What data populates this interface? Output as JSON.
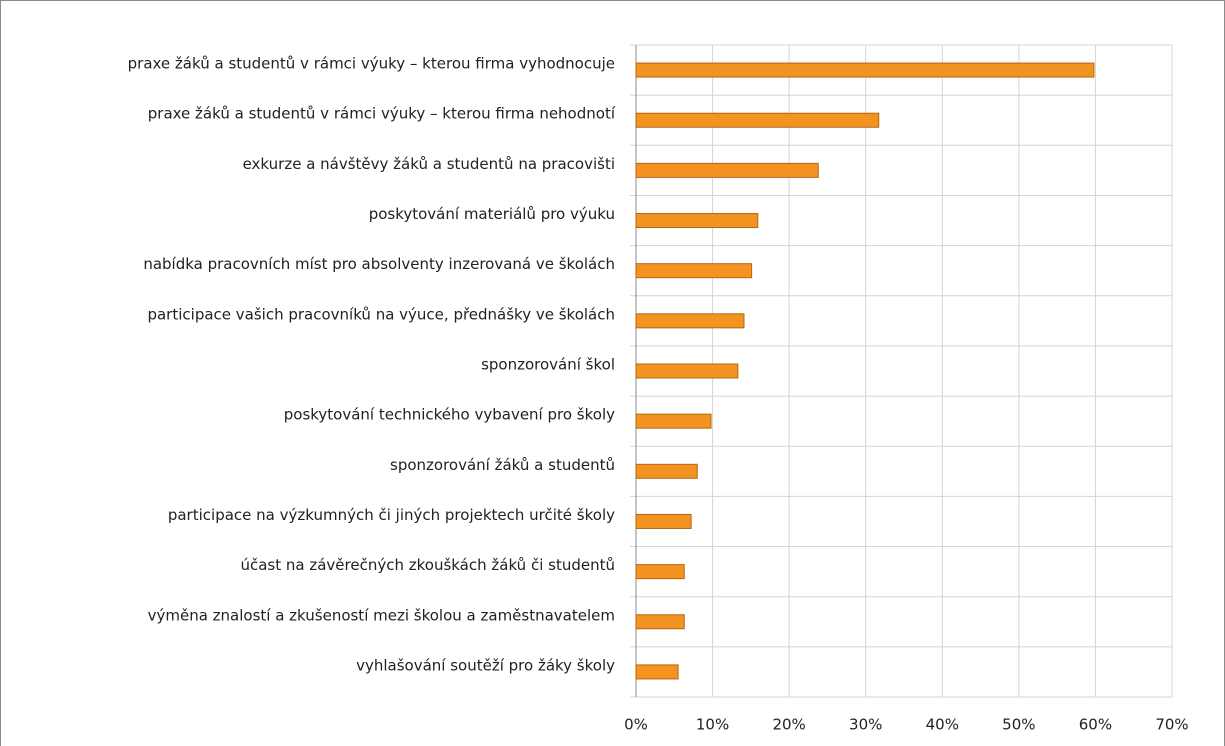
{
  "chart_data": {
    "type": "bar",
    "orientation": "horizontal",
    "categories": [
      "praxe žáků a studentů v rámci výuky – kterou firma vyhodnocuje",
      "praxe žáků a studentů v rámci výuky – kterou firma nehodnotí",
      "exkurze a návštěvy žáků a studentů na pracovišti",
      "poskytování materiálů pro výuku",
      "nabídka pracovních míst pro absolventy inzerovaná ve školách",
      "participace vašich pracovníků na výuce, přednášky ve školách",
      "sponzorování škol",
      "poskytování technického vybavení pro školy",
      "sponzorování žáků a studentů",
      "participace na výzkumných či jiných projektech určité školy",
      "účast na závěrečných zkouškách žáků či studentů",
      "výměna znalostí a zkušeností mezi školou a zaměstnavatelem",
      "vyhlašování soutěží pro žáky školy"
    ],
    "values": [
      59.8,
      31.7,
      23.8,
      15.9,
      15.1,
      14.1,
      13.3,
      9.8,
      8.0,
      7.2,
      6.3,
      6.3,
      5.5
    ],
    "color": "#f39422",
    "edge_color": "#b8650f",
    "xlim": [
      0,
      70
    ],
    "xticks": [
      {
        "value": 0,
        "label": "0%"
      },
      {
        "value": 10,
        "label": "10%"
      },
      {
        "value": 20,
        "label": "20%"
      },
      {
        "value": 30,
        "label": "30%"
      },
      {
        "value": 40,
        "label": "40%"
      },
      {
        "value": 50,
        "label": "50%"
      },
      {
        "value": 60,
        "label": "60%"
      },
      {
        "value": 70,
        "label": "70%"
      }
    ],
    "grid": true
  }
}
